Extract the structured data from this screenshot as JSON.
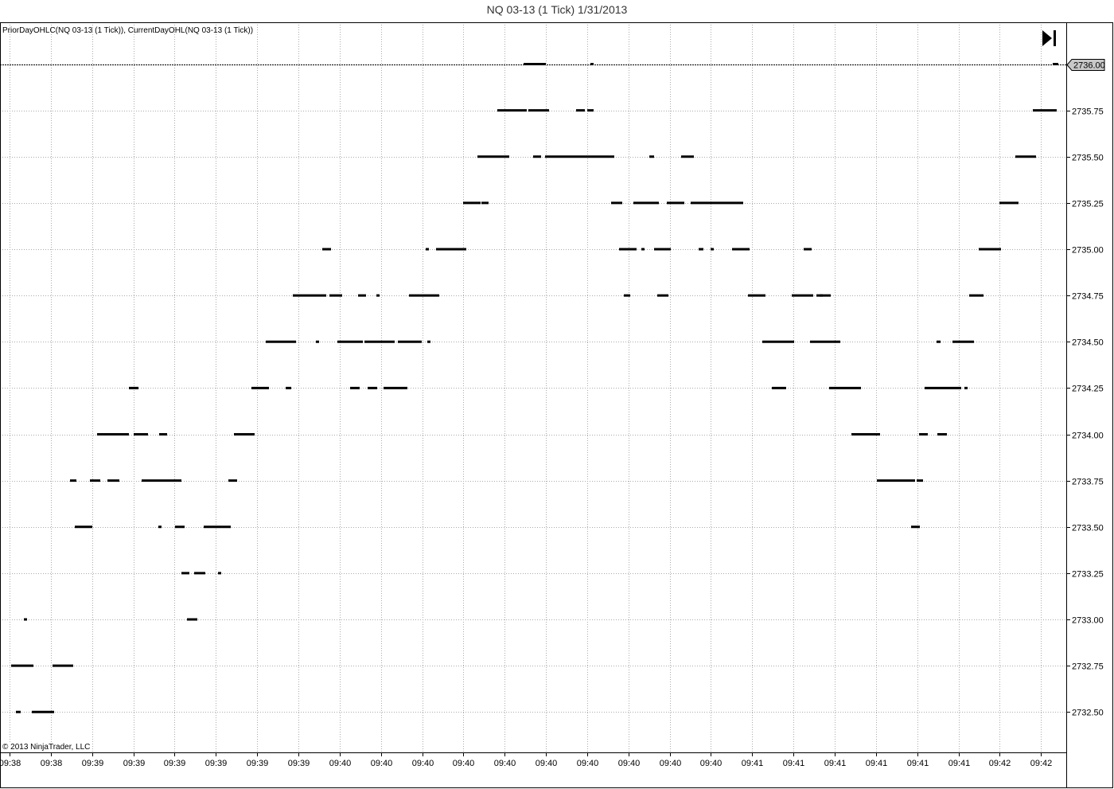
{
  "chart_title": "NQ 03-13 (1 Tick)  1/31/2013",
  "indicator_label": "PriorDayOHLC(NQ 03-13 (1 Tick)), CurrentDayOHL(NQ 03-13 (1 Tick))",
  "copyright": "© 2013 NinjaTrader, LLC",
  "goto_end_icon": "skip-to-end-icon",
  "colors": {
    "price": "#000000",
    "grid": "#aaaaaa",
    "marker_bg": "#c8c8c8"
  },
  "chart_data": {
    "type": "scatter",
    "instrument": "NQ 03-13",
    "interval": "1 Tick",
    "date": "1/31/2013",
    "ylim": [
      2732.25,
      2736.25
    ],
    "y_ticks": [
      2732.5,
      2732.75,
      2733.0,
      2733.25,
      2733.5,
      2733.75,
      2734.0,
      2734.25,
      2734.5,
      2734.75,
      2735.0,
      2735.25,
      2735.5,
      2735.75,
      2736.0
    ],
    "x_tick_labels": [
      "09:38",
      "09:38",
      "09:39",
      "09:39",
      "09:39",
      "09:39",
      "09:39",
      "09:39",
      "09:40",
      "09:40",
      "09:40",
      "09:40",
      "09:40",
      "09:40",
      "09:40",
      "09:40",
      "09:40",
      "09:40",
      "09:41",
      "09:41",
      "09:41",
      "09:41",
      "09:41",
      "09:41",
      "09:42",
      "09:42"
    ],
    "current_price": "2736.00",
    "grid": true,
    "tick_runs": [
      [
        14,
        42,
        2732.75
      ],
      [
        20,
        26,
        2732.5
      ],
      [
        40,
        68,
        2732.5
      ],
      [
        30,
        34,
        2733.0
      ],
      [
        66,
        92,
        2732.75
      ],
      [
        88,
        96,
        2733.75
      ],
      [
        94,
        116,
        2733.5
      ],
      [
        113,
        126,
        2733.75
      ],
      [
        122,
        162,
        2734.0
      ],
      [
        135,
        150,
        2733.75
      ],
      [
        162,
        174,
        2734.25
      ],
      [
        168,
        186,
        2734.0
      ],
      [
        178,
        228,
        2733.75
      ],
      [
        199,
        203,
        2733.5
      ],
      [
        200,
        210,
        2734.0
      ],
      [
        220,
        232,
        2733.5
      ],
      [
        228,
        238,
        2733.25
      ],
      [
        235,
        248,
        2733.0
      ],
      [
        244,
        258,
        2733.25
      ],
      [
        256,
        290,
        2733.5
      ],
      [
        274,
        278,
        2733.25
      ],
      [
        287,
        298,
        2733.75
      ],
      [
        294,
        320,
        2734.0
      ],
      [
        316,
        338,
        2734.25
      ],
      [
        334,
        372,
        2734.5
      ],
      [
        359,
        366,
        2734.25
      ],
      [
        368,
        410,
        2734.75
      ],
      [
        397,
        401,
        2734.5
      ],
      [
        405,
        416,
        2735.0
      ],
      [
        414,
        430,
        2734.75
      ],
      [
        424,
        456,
        2734.5
      ],
      [
        440,
        452,
        2734.25
      ],
      [
        450,
        460,
        2734.75
      ],
      [
        458,
        468,
        2734.5
      ],
      [
        462,
        474,
        2734.25
      ],
      [
        468,
        496,
        2734.5
      ],
      [
        473,
        477,
        2734.75
      ],
      [
        482,
        512,
        2734.25
      ],
      [
        500,
        530,
        2734.5
      ],
      [
        514,
        552,
        2734.75
      ],
      [
        535,
        539,
        2735.0
      ],
      [
        537,
        541,
        2734.5
      ],
      [
        548,
        586,
        2735.0
      ],
      [
        582,
        604,
        2735.25
      ],
      [
        600,
        640,
        2735.5
      ],
      [
        605,
        614,
        2735.25
      ],
      [
        625,
        662,
        2735.75
      ],
      [
        658,
        686,
        2736.0
      ],
      [
        664,
        690,
        2735.75
      ],
      [
        670,
        680,
        2735.5
      ],
      [
        685,
        772,
        2735.5
      ],
      [
        724,
        735,
        2735.75
      ],
      [
        738,
        746,
        2735.75
      ],
      [
        742,
        746,
        2736.0
      ],
      [
        768,
        782,
        2735.25
      ],
      [
        778,
        800,
        2735.0
      ],
      [
        784,
        792,
        2734.75
      ],
      [
        796,
        828,
        2735.25
      ],
      [
        806,
        810,
        2735.0
      ],
      [
        816,
        822,
        2735.5
      ],
      [
        822,
        843,
        2735.0
      ],
      [
        826,
        840,
        2734.75
      ],
      [
        838,
        860,
        2735.25
      ],
      [
        856,
        872,
        2735.5
      ],
      [
        868,
        934,
        2735.25
      ],
      [
        878,
        884,
        2735.0
      ],
      [
        893,
        897,
        2735.0
      ],
      [
        920,
        942,
        2735.0
      ],
      [
        940,
        962,
        2734.75
      ],
      [
        958,
        998,
        2734.5
      ],
      [
        970,
        988,
        2734.25
      ],
      [
        995,
        1022,
        2734.75
      ],
      [
        1010,
        1020,
        2735.0
      ],
      [
        1018,
        1034,
        2734.5
      ],
      [
        1026,
        1034,
        2734.75
      ],
      [
        1030,
        1044,
        2734.75
      ],
      [
        1034,
        1056,
        2734.5
      ],
      [
        1042,
        1082,
        2734.25
      ],
      [
        1070,
        1106,
        2734.0
      ],
      [
        1102,
        1150,
        2733.75
      ],
      [
        1145,
        1156,
        2733.5
      ],
      [
        1152,
        1160,
        2733.75
      ],
      [
        1155,
        1166,
        2734.0
      ],
      [
        1162,
        1208,
        2734.25
      ],
      [
        1178,
        1190,
        2734.0
      ],
      [
        1177,
        1182,
        2734.5
      ],
      [
        1197,
        1224,
        2734.5
      ],
      [
        1212,
        1216,
        2734.25
      ],
      [
        1218,
        1236,
        2734.75
      ],
      [
        1230,
        1258,
        2735.0
      ],
      [
        1256,
        1280,
        2735.25
      ],
      [
        1276,
        1302,
        2735.5
      ],
      [
        1298,
        1328,
        2735.75
      ],
      [
        1323,
        1330,
        2736.0
      ]
    ]
  }
}
